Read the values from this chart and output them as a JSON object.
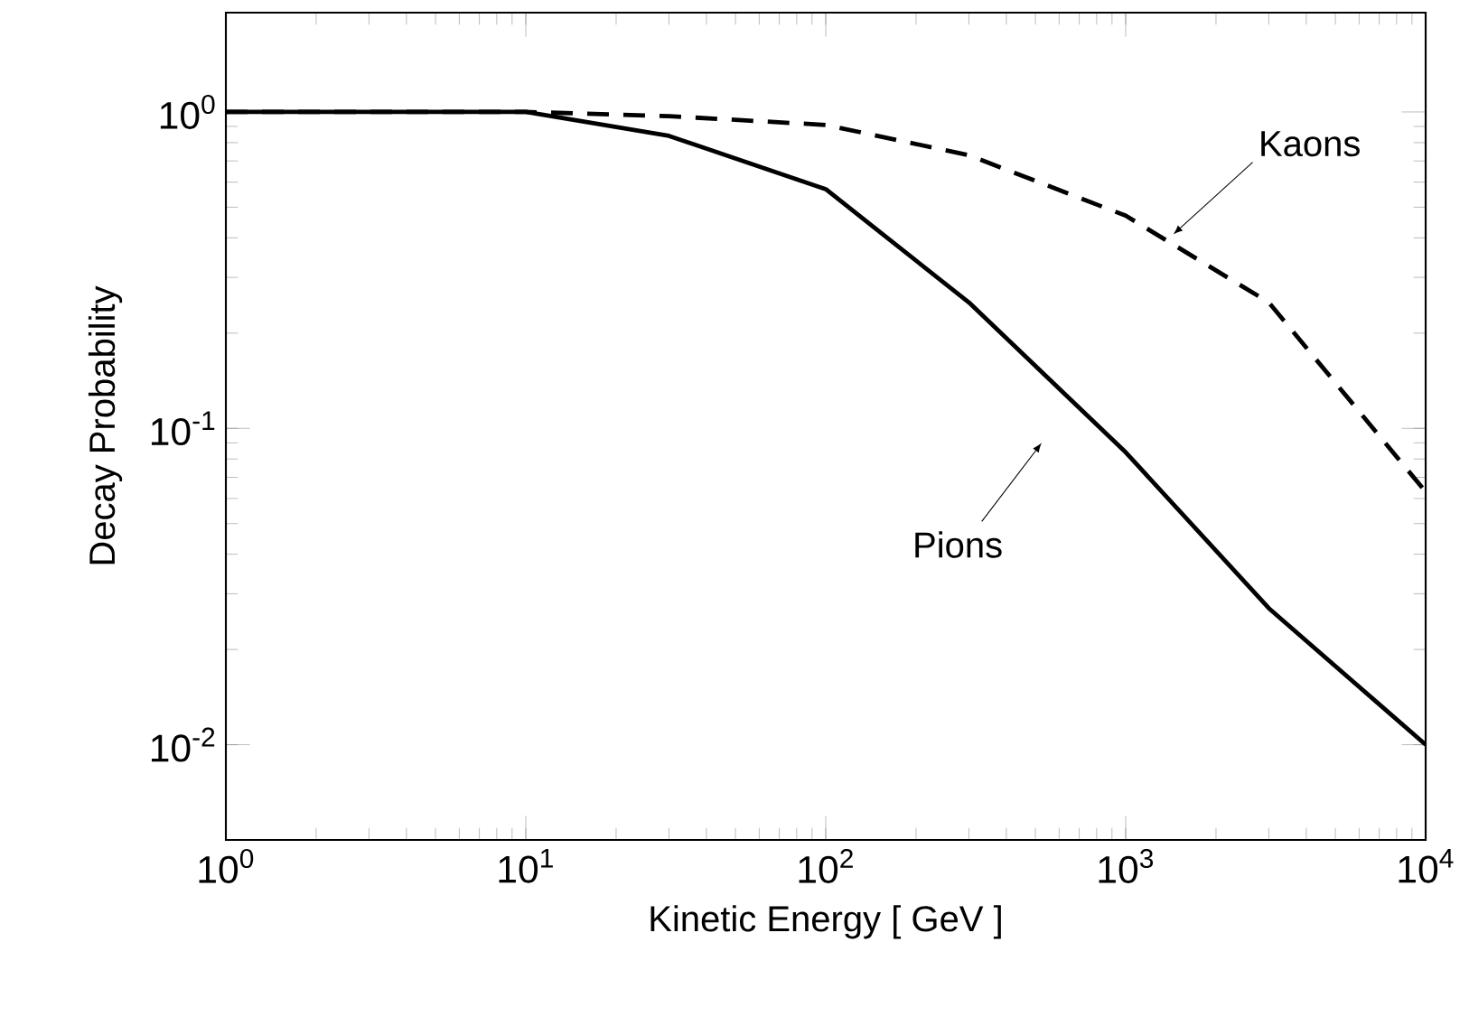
{
  "chart_data": {
    "type": "line",
    "xlabel": "Kinetic  Energy [ GeV ]",
    "ylabel": "Decay  Probability",
    "log": "xy",
    "grid": false,
    "xlim": [
      1,
      10000
    ],
    "ylim": [
      0.005,
      2.06
    ],
    "xticks": [
      {
        "value": 1,
        "label": "10$^{0}$"
      },
      {
        "value": 10,
        "label": "10$^{1}$"
      },
      {
        "value": 100,
        "label": "10$^{2}$"
      },
      {
        "value": 1000,
        "label": "10$^{3}$"
      },
      {
        "value": 10000,
        "label": "10$^{4}$"
      }
    ],
    "yticks": [
      {
        "value": 0.01,
        "label": "10$^{-2}$"
      },
      {
        "value": 0.1,
        "label": "10$^{-1}$"
      },
      {
        "value": 1,
        "label": "10$^{0}$"
      }
    ],
    "series": [
      {
        "color": "#000000",
        "line_style": "solid",
        "x": [
          1,
          10,
          30,
          100,
          300,
          1000,
          3000,
          10000
        ],
        "values": [
          1,
          1,
          0.84,
          0.57,
          0.25,
          0.084,
          0.027,
          0.01
        ]
      },
      {
        "color": "#000000",
        "line_style": "dashed",
        "x": [
          1,
          10,
          30,
          100,
          300,
          1000,
          3000,
          10000
        ],
        "values": [
          1,
          1,
          0.97,
          0.91,
          0.73,
          0.47,
          0.25,
          0.063
        ]
      }
    ],
    "annotations": [
      {
        "text": "Kaons",
        "x": 1440,
        "y": 0.41
      },
      "Pions"
    ]
  }
}
